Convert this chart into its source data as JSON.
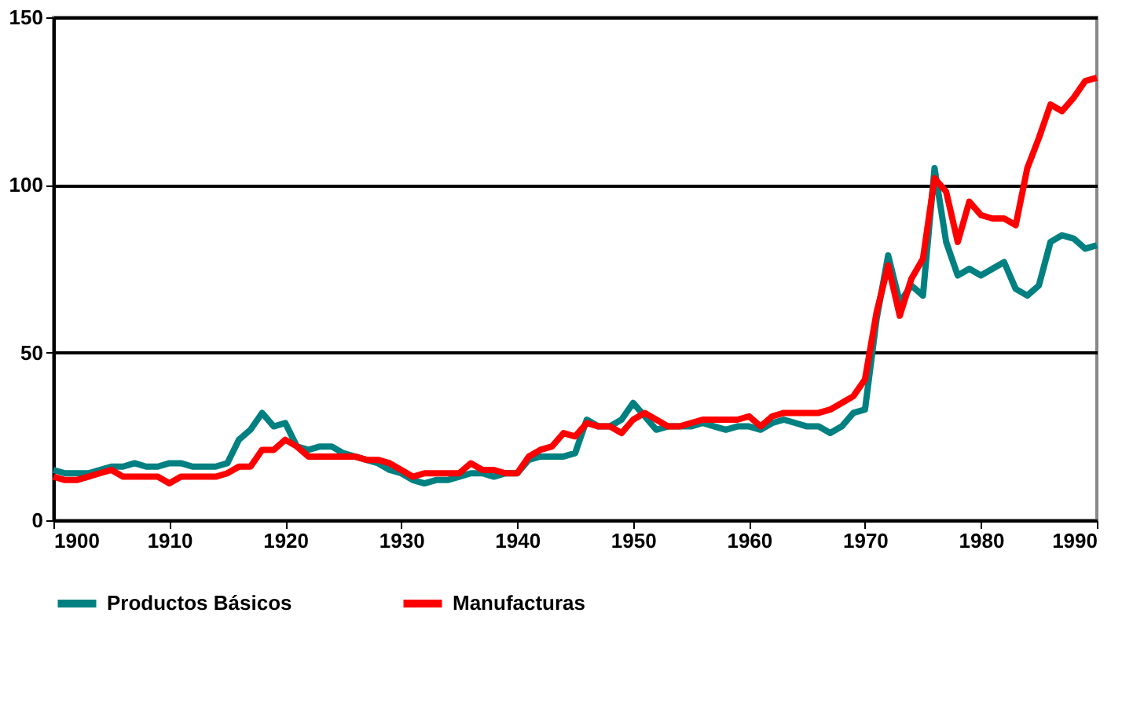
{
  "chart_data": {
    "type": "line",
    "x": [
      1900,
      1901,
      1902,
      1903,
      1904,
      1905,
      1906,
      1907,
      1908,
      1909,
      1910,
      1911,
      1912,
      1913,
      1914,
      1915,
      1916,
      1917,
      1918,
      1919,
      1920,
      1921,
      1922,
      1923,
      1924,
      1925,
      1926,
      1927,
      1928,
      1929,
      1930,
      1931,
      1932,
      1933,
      1934,
      1935,
      1936,
      1937,
      1938,
      1939,
      1940,
      1941,
      1942,
      1943,
      1944,
      1945,
      1946,
      1947,
      1948,
      1949,
      1950,
      1951,
      1952,
      1953,
      1954,
      1955,
      1956,
      1957,
      1958,
      1959,
      1960,
      1961,
      1962,
      1963,
      1964,
      1965,
      1966,
      1967,
      1968,
      1969,
      1970,
      1971,
      1972,
      1973,
      1974,
      1975,
      1976,
      1977,
      1978,
      1979,
      1980,
      1981,
      1982,
      1983,
      1984,
      1985,
      1986,
      1987,
      1988,
      1989,
      1990
    ],
    "series": [
      {
        "name": "Productos Básicos",
        "color": "#008080",
        "values": [
          15,
          14,
          14,
          14,
          15,
          16,
          16,
          17,
          16,
          16,
          17,
          17,
          16,
          16,
          16,
          17,
          24,
          27,
          32,
          28,
          29,
          22,
          21,
          22,
          22,
          20,
          19,
          18,
          17,
          15,
          14,
          12,
          11,
          12,
          12,
          13,
          14,
          14,
          13,
          14,
          14,
          18,
          19,
          19,
          19,
          20,
          30,
          28,
          28,
          30,
          35,
          31,
          27,
          28,
          28,
          28,
          29,
          28,
          27,
          28,
          28,
          27,
          29,
          30,
          29,
          28,
          28,
          26,
          28,
          32,
          33,
          60,
          79,
          65,
          70,
          67,
          105,
          83,
          73,
          75,
          73,
          75,
          77,
          69,
          67,
          70,
          83,
          85,
          84,
          81,
          82
        ]
      },
      {
        "name": "Manufacturas",
        "color": "#ff0000",
        "values": [
          13,
          12,
          12,
          13,
          14,
          15,
          13,
          13,
          13,
          13,
          11,
          13,
          13,
          13,
          13,
          14,
          16,
          16,
          21,
          21,
          24,
          22,
          19,
          19,
          19,
          19,
          19,
          18,
          18,
          17,
          15,
          13,
          14,
          14,
          14,
          14,
          17,
          15,
          15,
          14,
          14,
          19,
          21,
          22,
          26,
          25,
          29,
          28,
          28,
          26,
          30,
          32,
          30,
          28,
          28,
          29,
          30,
          30,
          30,
          30,
          31,
          28,
          31,
          32,
          32,
          32,
          32,
          33,
          35,
          37,
          42,
          62,
          76,
          61,
          72,
          78,
          102,
          98,
          83,
          95,
          91,
          90,
          90,
          88,
          105,
          114,
          124,
          122,
          126,
          131,
          132
        ]
      }
    ],
    "xlim": [
      1900,
      1990
    ],
    "xticks": [
      1900,
      1910,
      1920,
      1930,
      1940,
      1950,
      1960,
      1970,
      1980,
      1990
    ],
    "ylim": [
      0,
      150
    ],
    "yticks": [
      0,
      50,
      100,
      150
    ],
    "grid": "y",
    "legend": "bottom",
    "line_style": "solid",
    "marker": "none"
  }
}
